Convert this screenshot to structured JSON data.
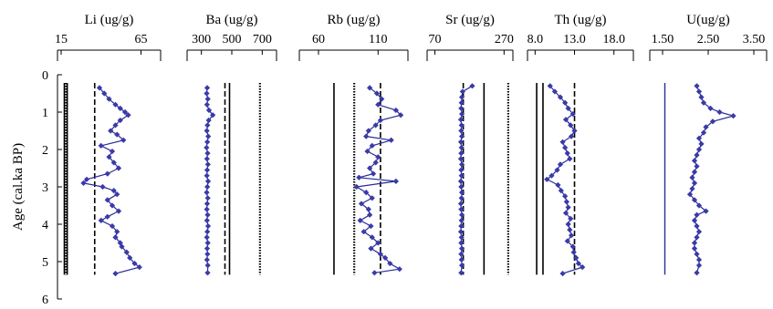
{
  "y_axis": {
    "label": "Age (cal.ka BP)",
    "ticks": [
      "0",
      "1",
      "2",
      "3",
      "4",
      "5",
      "6"
    ],
    "range": [
      0,
      6
    ]
  },
  "colors": {
    "series": "#2a2a9a",
    "marker": "#3a3aa8",
    "ref": "#000000"
  },
  "chart_data": [
    {
      "type": "line",
      "title": "Li (ug/g)",
      "xlim": [
        15,
        75
      ],
      "xticks": [
        15,
        65
      ],
      "xtick_labels": [
        "15",
        "65"
      ],
      "ref_lines": [
        {
          "x": 17,
          "style": "solid"
        },
        {
          "x": 18,
          "style": "dotted"
        },
        {
          "x": 18.8,
          "style": "solid"
        },
        {
          "x": 36,
          "style": "dashed"
        }
      ],
      "series": [
        {
          "ages": [
            0.35,
            0.5,
            0.65,
            0.8,
            0.9,
            1.0,
            1.08,
            1.22,
            1.35,
            1.5,
            1.6,
            1.75,
            1.9,
            2.05,
            2.2,
            2.35,
            2.5,
            2.65,
            2.8,
            2.9,
            3.0,
            3.1,
            3.2,
            3.35,
            3.5,
            3.65,
            3.8,
            3.9,
            4.05,
            4.2,
            4.35,
            4.5,
            4.6,
            4.75,
            4.9,
            5.05,
            5.15,
            5.32
          ],
          "values": [
            39,
            42,
            45,
            49,
            52,
            55,
            57,
            52,
            49,
            46,
            50,
            54,
            40,
            47,
            45,
            48,
            51,
            44,
            31,
            29,
            41,
            48,
            50,
            44,
            47,
            51,
            44,
            40,
            47,
            50,
            49,
            52,
            53,
            56,
            58,
            61,
            64,
            49
          ]
        }
      ]
    },
    {
      "type": "line",
      "title": "Ba (ug/g)",
      "xlim": [
        230,
        770
      ],
      "xticks": [
        300,
        500,
        700
      ],
      "xtick_labels": [
        "300",
        "500",
        "700"
      ],
      "ref_lines": [
        {
          "x": 455,
          "style": "dashed"
        },
        {
          "x": 485,
          "style": "solid"
        },
        {
          "x": 685,
          "style": "dotted"
        }
      ],
      "series": [
        {
          "ages": [
            0.35,
            0.5,
            0.65,
            0.8,
            0.95,
            1.08,
            1.22,
            1.35,
            1.5,
            1.65,
            1.8,
            1.95,
            2.1,
            2.25,
            2.4,
            2.55,
            2.7,
            2.85,
            3.0,
            3.15,
            3.3,
            3.45,
            3.6,
            3.75,
            3.9,
            4.05,
            4.2,
            4.35,
            4.5,
            4.65,
            4.8,
            4.95,
            5.1,
            5.3
          ],
          "values": [
            338,
            335,
            342,
            337,
            350,
            375,
            348,
            340,
            336,
            345,
            339,
            334,
            341,
            337,
            343,
            338,
            336,
            344,
            339,
            335,
            342,
            338,
            336,
            341,
            337,
            344,
            339,
            336,
            342,
            338,
            340,
            337,
            342,
            341
          ]
        }
      ]
    },
    {
      "type": "line",
      "title": "Rb (ug/g)",
      "xlim": [
        47,
        132
      ],
      "xticks": [
        60,
        110
      ],
      "xtick_labels": [
        "60",
        "110"
      ],
      "ref_lines": [
        {
          "x": 73,
          "style": "solid"
        },
        {
          "x": 90,
          "style": "dotted"
        },
        {
          "x": 112,
          "style": "dashed"
        }
      ],
      "series": [
        {
          "ages": [
            0.35,
            0.5,
            0.65,
            0.8,
            0.95,
            1.08,
            1.22,
            1.35,
            1.5,
            1.65,
            1.75,
            1.9,
            2.05,
            2.2,
            2.35,
            2.5,
            2.65,
            2.75,
            2.85,
            3.0,
            3.15,
            3.3,
            3.45,
            3.6,
            3.75,
            3.9,
            4.05,
            4.2,
            4.35,
            4.5,
            4.65,
            4.8,
            4.9,
            5.05,
            5.2,
            5.3
          ],
          "values": [
            103,
            109,
            113,
            110,
            125,
            129,
            112,
            108,
            102,
            100,
            121,
            105,
            101,
            110,
            108,
            103,
            106,
            94,
            125,
            92,
            100,
            105,
            96,
            102,
            103,
            95,
            104,
            98,
            105,
            110,
            104,
            112,
            116,
            120,
            128,
            107
          ]
        }
      ]
    },
    {
      "type": "line",
      "title": "Sr (ug/g)",
      "xlim": [
        58,
        285
      ],
      "xticks": [
        70,
        270
      ],
      "xtick_labels": [
        "70",
        "270"
      ],
      "ref_lines": [
        {
          "x": 152,
          "style": "dashed"
        },
        {
          "x": 212,
          "style": "solid"
        },
        {
          "x": 282,
          "style": "dotted"
        }
      ],
      "series": [
        {
          "ages": [
            0.3,
            0.45,
            0.6,
            0.75,
            0.9,
            1.05,
            1.2,
            1.35,
            1.5,
            1.65,
            1.8,
            1.95,
            2.1,
            2.25,
            2.4,
            2.55,
            2.7,
            2.85,
            3.0,
            3.15,
            3.3,
            3.45,
            3.6,
            3.75,
            3.9,
            4.05,
            4.2,
            4.35,
            4.5,
            4.65,
            4.8,
            4.95,
            5.1,
            5.3
          ],
          "values": [
            178,
            150,
            148,
            147,
            146,
            148,
            145,
            147,
            146,
            148,
            145,
            147,
            146,
            145,
            148,
            146,
            147,
            145,
            146,
            148,
            147,
            145,
            146,
            148,
            147,
            146,
            145,
            147,
            146,
            148,
            146,
            147,
            148,
            146
          ]
        }
      ]
    },
    {
      "type": "line",
      "title": "Th (ug/g)",
      "xlim": [
        7.5,
        20
      ],
      "xticks": [
        8.0,
        13.0,
        18.0
      ],
      "xtick_labels": [
        "8.0",
        "13.0",
        "18.0"
      ],
      "ref_lines": [
        {
          "x": 8.2,
          "style": "solid"
        },
        {
          "x": 9.0,
          "style": "solid"
        },
        {
          "x": 13.0,
          "style": "dashed"
        }
      ],
      "series": [
        {
          "ages": [
            0.3,
            0.45,
            0.6,
            0.75,
            0.9,
            1.05,
            1.2,
            1.35,
            1.5,
            1.65,
            1.8,
            1.95,
            2.1,
            2.25,
            2.4,
            2.55,
            2.7,
            2.8,
            2.95,
            3.1,
            3.25,
            3.4,
            3.55,
            3.7,
            3.85,
            4.0,
            4.15,
            4.3,
            4.45,
            4.6,
            4.75,
            4.9,
            5.05,
            5.15,
            5.32
          ],
          "values": [
            9.9,
            10.5,
            11.2,
            11.8,
            12.2,
            12.8,
            11.9,
            12.5,
            13.0,
            12.6,
            11.5,
            11.8,
            12.1,
            12.4,
            11.2,
            10.8,
            10.1,
            9.5,
            10.9,
            11.3,
            11.8,
            12.0,
            12.2,
            11.9,
            12.5,
            12.2,
            12.4,
            12.6,
            12.1,
            12.8,
            12.9,
            13.2,
            13.5,
            14.0,
            11.5
          ]
        }
      ]
    },
    {
      "type": "line",
      "title": "U(ug/g)",
      "xlim": [
        1.3,
        3.7
      ],
      "xticks": [
        1.5,
        2.5,
        3.5
      ],
      "xtick_labels": [
        "1.50",
        "2.50",
        "3.50"
      ],
      "ref_lines": [
        {
          "x": 1.55,
          "style": "solid-blue"
        }
      ],
      "series": [
        {
          "ages": [
            0.3,
            0.45,
            0.6,
            0.75,
            0.9,
            1.0,
            1.1,
            1.25,
            1.4,
            1.55,
            1.7,
            1.85,
            2.0,
            2.15,
            2.3,
            2.45,
            2.6,
            2.75,
            2.9,
            3.05,
            3.2,
            3.35,
            3.5,
            3.65,
            3.75,
            3.9,
            4.05,
            4.2,
            4.35,
            4.5,
            4.65,
            4.8,
            4.95,
            5.1,
            5.3
          ],
          "values": [
            2.25,
            2.3,
            2.35,
            2.4,
            2.55,
            2.75,
            3.05,
            2.6,
            2.45,
            2.4,
            2.3,
            2.35,
            2.3,
            2.25,
            2.2,
            2.25,
            2.2,
            2.15,
            2.2,
            2.15,
            2.1,
            2.2,
            2.3,
            2.45,
            2.25,
            2.2,
            2.25,
            2.3,
            2.25,
            2.2,
            2.2,
            2.25,
            2.3,
            2.3,
            2.25
          ]
        }
      ]
    }
  ]
}
